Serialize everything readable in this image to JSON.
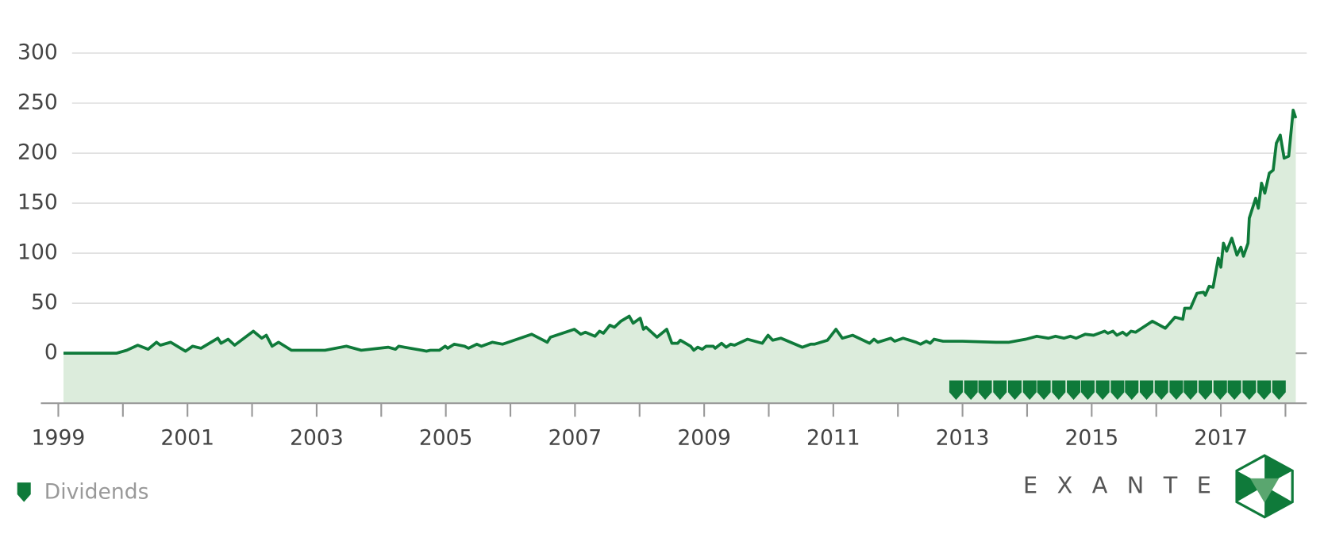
{
  "chart_data": {
    "type": "line",
    "x": [
      1999.08,
      1999.9,
      2000.06,
      2000.23,
      2000.39,
      2000.52,
      2000.58,
      2000.74,
      2000.97,
      2001.08,
      2001.21,
      2001.47,
      2001.52,
      2001.63,
      2001.73,
      2002.02,
      2002.15,
      2002.22,
      2002.31,
      2002.41,
      2002.61,
      2003.13,
      2003.46,
      2003.69,
      2004.11,
      2004.22,
      2004.27,
      2004.63,
      2004.7,
      2004.76,
      2004.9,
      2004.99,
      2005.03,
      2005.13,
      2005.29,
      2005.35,
      2005.48,
      2005.55,
      2005.72,
      2005.88,
      2006.33,
      2006.57,
      2006.62,
      2006.99,
      2007.09,
      2007.16,
      2007.31,
      2007.38,
      2007.44,
      2007.54,
      2007.61,
      2007.71,
      2007.84,
      2007.9,
      2008.01,
      2008.06,
      2008.1,
      2008.27,
      2008.42,
      2008.5,
      2008.59,
      2008.63,
      2008.79,
      2008.84,
      2008.9,
      2008.97,
      2009.03,
      2009.14,
      2009.17,
      2009.27,
      2009.34,
      2009.41,
      2009.47,
      2009.67,
      2009.9,
      2009.99,
      2010.06,
      2010.19,
      2010.52,
      2010.65,
      2010.71,
      2010.91,
      2011.04,
      2011.14,
      2011.3,
      2011.56,
      2011.63,
      2011.69,
      2011.89,
      2011.95,
      2012.08,
      2012.28,
      2012.35,
      2012.44,
      2012.5,
      2012.56,
      2012.7,
      2013.0,
      2013.52,
      2013.72,
      2013.98,
      2014.15,
      2014.33,
      2014.44,
      2014.57,
      2014.67,
      2014.76,
      2014.9,
      2015.03,
      2015.2,
      2015.25,
      2015.33,
      2015.39,
      2015.48,
      2015.54,
      2015.61,
      2015.68,
      2015.94,
      2016.14,
      2016.29,
      2016.41,
      2016.44,
      2016.53,
      2016.63,
      2016.73,
      2016.76,
      2016.82,
      2016.88,
      2016.96,
      2017.0,
      2017.04,
      2017.09,
      2017.17,
      2017.25,
      2017.31,
      2017.35,
      2017.42,
      2017.44,
      2017.54,
      2017.58,
      2017.63,
      2017.68,
      2017.75,
      2017.81,
      2017.86,
      2017.92,
      2017.98,
      2018.05,
      2018.12,
      2018.16
    ],
    "series": [
      {
        "color": "#0f7a3a",
        "fill": "#dcecdc",
        "values": [
          0,
          0,
          3,
          8,
          4,
          11,
          8,
          11,
          2,
          7,
          5,
          15,
          10,
          14,
          8,
          22,
          15,
          18,
          7,
          11,
          3,
          3,
          7,
          3,
          6,
          4,
          7,
          3,
          2,
          3,
          3,
          7,
          5,
          9,
          7,
          5,
          9,
          7,
          11,
          9,
          19,
          11,
          16,
          24,
          19,
          21,
          17,
          22,
          20,
          28,
          26,
          32,
          37,
          30,
          35,
          24,
          26,
          16,
          24,
          10,
          10,
          13,
          7,
          3,
          6,
          4,
          7,
          7,
          5,
          10,
          6,
          9,
          8,
          14,
          10,
          18,
          13,
          15,
          6,
          9,
          9,
          13,
          24,
          15,
          18,
          10,
          14,
          11,
          15,
          12,
          15,
          11,
          9,
          12,
          10,
          14,
          12,
          12,
          11,
          11,
          14,
          17,
          15,
          17,
          15,
          17,
          15,
          19,
          18,
          22,
          20,
          22,
          18,
          21,
          18,
          22,
          21,
          32,
          25,
          36,
          34,
          45,
          45,
          60,
          61,
          58,
          67,
          66,
          95,
          86,
          110,
          102,
          115,
          98,
          106,
          97,
          110,
          135,
          155,
          145,
          170,
          160,
          180,
          183,
          210,
          218,
          195,
          197,
          243,
          235
        ]
      }
    ],
    "dividends": {
      "name": "Dividends",
      "color": "#0f7a3a",
      "x": [
        2012.9,
        2013.13,
        2013.35,
        2013.58,
        2013.81,
        2014.04,
        2014.26,
        2014.49,
        2014.72,
        2014.94,
        2015.17,
        2015.4,
        2015.62,
        2015.85,
        2016.08,
        2016.31,
        2016.53,
        2016.76,
        2016.99,
        2017.21,
        2017.44,
        2017.67,
        2017.9
      ]
    },
    "xlim": [
      1998.73,
      2018.33
    ],
    "xticks": [
      1999,
      2001,
      2003,
      2005,
      2007,
      2009,
      2011,
      2013,
      2015,
      2017
    ],
    "xminor_ticks": [
      2000,
      2002,
      2004,
      2006,
      2008,
      2010,
      2012,
      2014,
      2016,
      2018
    ],
    "ylim": [
      -50,
      300
    ],
    "yticks": [
      0,
      50,
      100,
      150,
      200,
      250,
      300
    ],
    "grid": true
  },
  "logo": "EXANTE"
}
